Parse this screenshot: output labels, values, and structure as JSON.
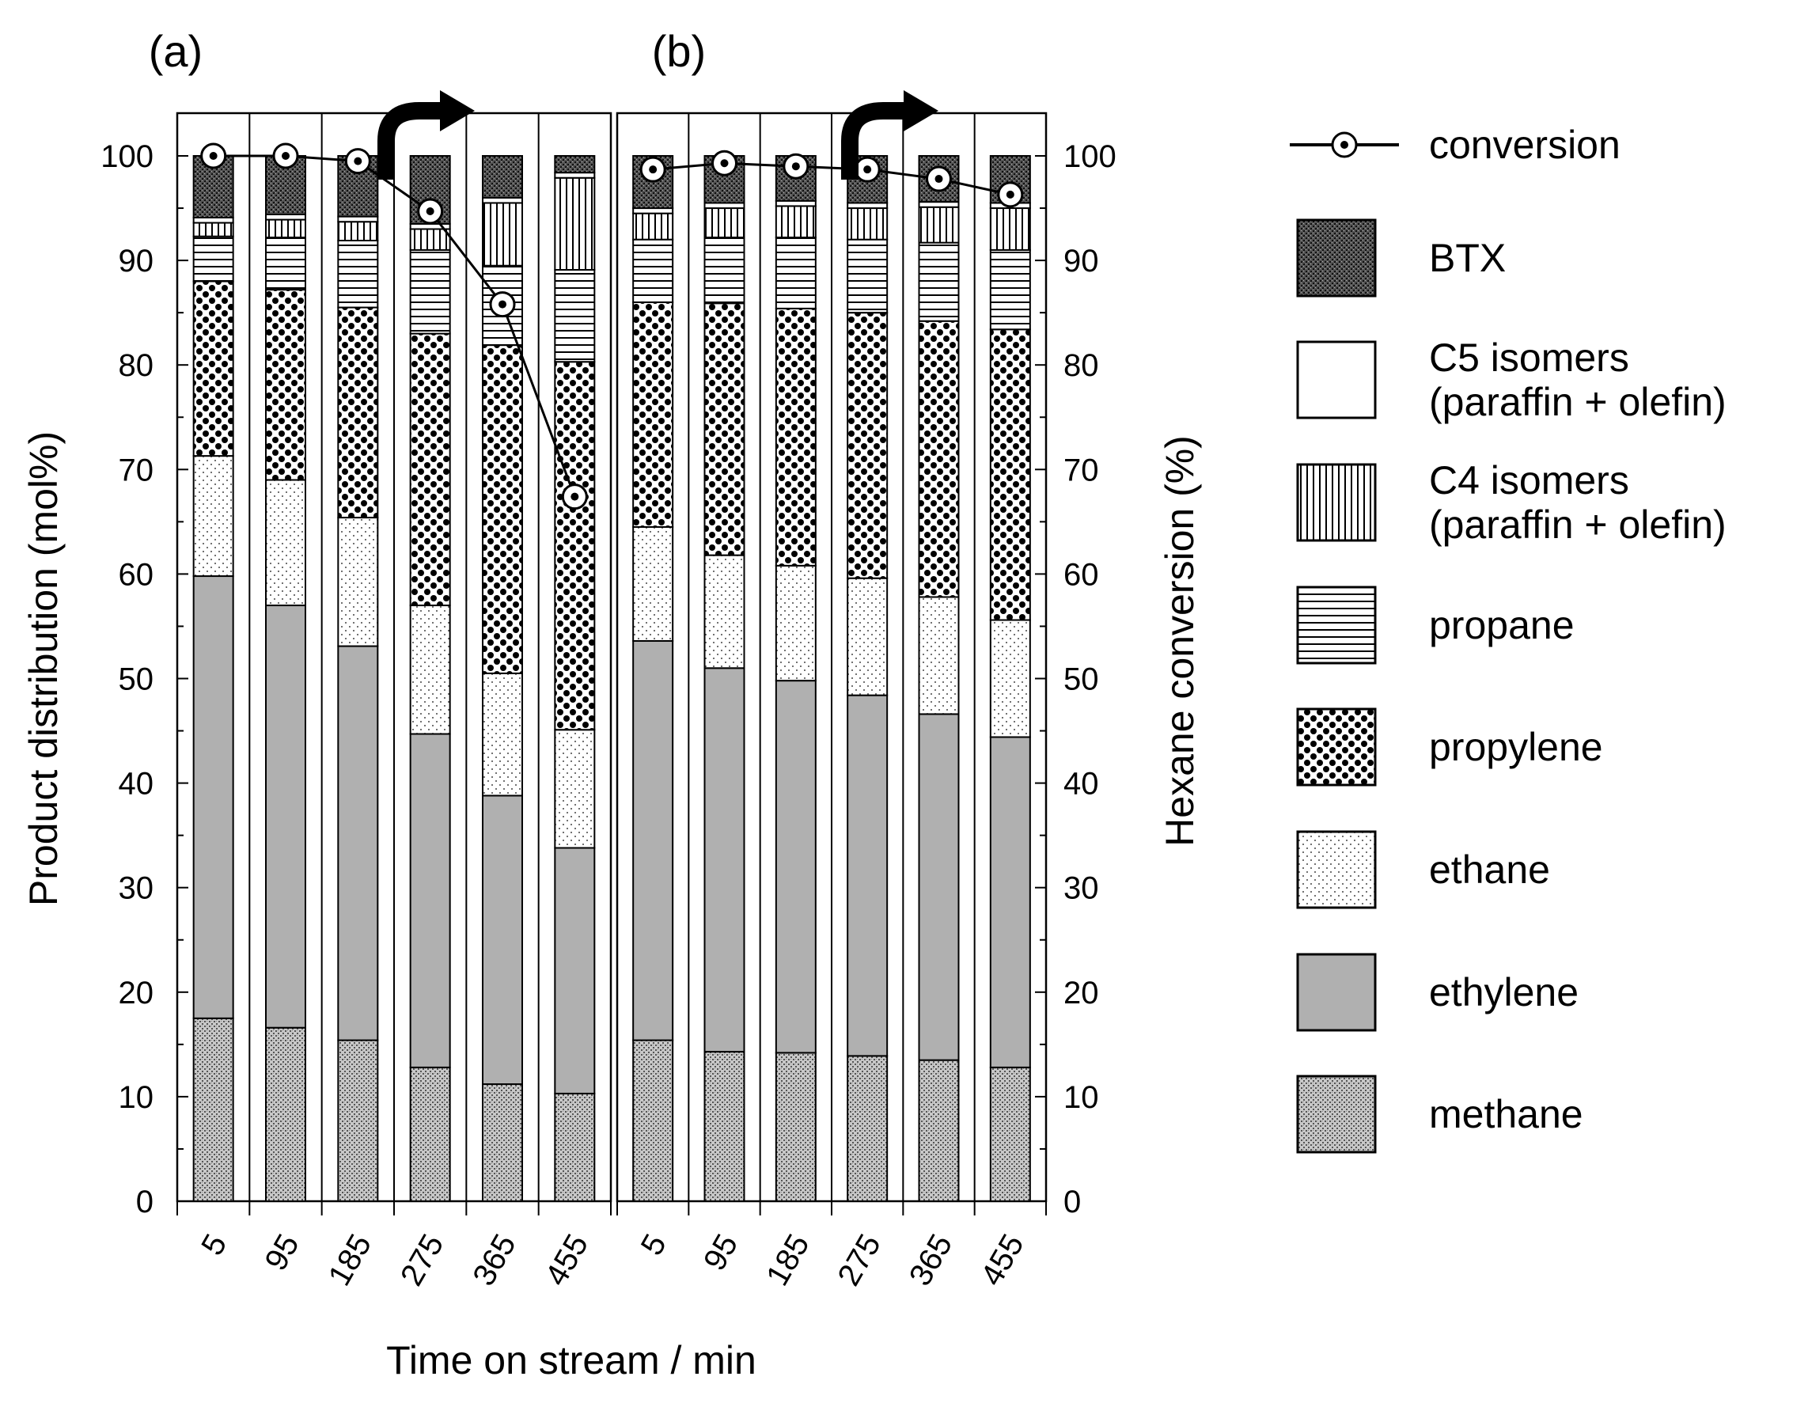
{
  "chart_data": {
    "type": "bar",
    "subtype": "stacked-bar-with-line",
    "panels": [
      {
        "label": "(a)",
        "categories": [
          "5",
          "95",
          "185",
          "275",
          "365",
          "455"
        ],
        "conversion": [
          100,
          100,
          99.5,
          94.7,
          85.8,
          67.4
        ],
        "stacks": {
          "methane": [
            17.5,
            16.6,
            15.4,
            12.8,
            11.2,
            10.3
          ],
          "ethylene": [
            42.3,
            40.4,
            37.7,
            31.9,
            27.6,
            23.5
          ],
          "ethane": [
            11.5,
            12.0,
            12.3,
            12.3,
            11.7,
            11.3
          ],
          "propylene": [
            16.7,
            18.2,
            20.1,
            26.0,
            31.4,
            35.2
          ],
          "propane": [
            4.3,
            5.0,
            6.4,
            8.0,
            7.6,
            8.8
          ],
          "C4": [
            1.3,
            1.7,
            1.8,
            2.0,
            6.0,
            8.8
          ],
          "C5": [
            0.5,
            0.5,
            0.5,
            0.5,
            0.5,
            0.5
          ],
          "BTX": [
            5.9,
            5.6,
            5.8,
            6.5,
            4.0,
            1.6
          ]
        }
      },
      {
        "label": "(b)",
        "categories": [
          "5",
          "95",
          "185",
          "275",
          "365",
          "455"
        ],
        "conversion": [
          98.7,
          99.3,
          99.0,
          98.7,
          97.8,
          96.3
        ],
        "stacks": {
          "methane": [
            15.4,
            14.3,
            14.2,
            13.9,
            13.5,
            12.8
          ],
          "ethylene": [
            38.2,
            36.7,
            35.6,
            34.5,
            33.1,
            31.6
          ],
          "ethane": [
            10.9,
            10.8,
            11.0,
            11.2,
            11.2,
            11.2
          ],
          "propylene": [
            21.5,
            24.1,
            24.6,
            25.4,
            26.4,
            27.8
          ],
          "propane": [
            6.0,
            6.3,
            6.8,
            7.0,
            7.5,
            7.6
          ],
          "C4": [
            2.5,
            2.8,
            3.0,
            3.0,
            3.4,
            4.0
          ],
          "C5": [
            0.5,
            0.5,
            0.5,
            0.5,
            0.5,
            0.5
          ],
          "BTX": [
            5.0,
            4.5,
            4.3,
            4.5,
            4.4,
            4.5
          ]
        }
      }
    ],
    "series_order": [
      "methane",
      "ethylene",
      "ethane",
      "propylene",
      "propane",
      "C4",
      "C5",
      "BTX"
    ],
    "ylim": [
      0,
      100
    ],
    "yticks": [
      0,
      10,
      20,
      30,
      40,
      50,
      60,
      70,
      80,
      90,
      100
    ],
    "ylabel": "Product distribution (mol%)",
    "y2label": "Hexane conversion (%)",
    "xlabel": "Time on stream / min",
    "grid": false,
    "legend_position": "right",
    "legend": [
      {
        "key": "conversion",
        "lines": [
          "conversion"
        ]
      },
      {
        "key": "BTX",
        "lines": [
          "BTX"
        ]
      },
      {
        "key": "C5",
        "lines": [
          "C5 isomers",
          "(paraffin + olefin)"
        ]
      },
      {
        "key": "C4",
        "lines": [
          "C4 isomers",
          "(paraffin + olefin)"
        ]
      },
      {
        "key": "propane",
        "lines": [
          "propane"
        ]
      },
      {
        "key": "propylene",
        "lines": [
          "propylene"
        ]
      },
      {
        "key": "ethane",
        "lines": [
          "ethane"
        ]
      },
      {
        "key": "ethylene",
        "lines": [
          "ethylene"
        ]
      },
      {
        "key": "methane",
        "lines": [
          "methane"
        ]
      }
    ]
  }
}
